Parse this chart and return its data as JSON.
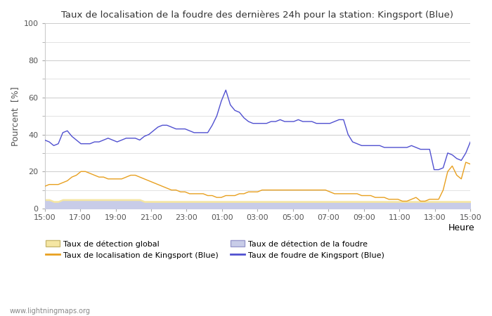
{
  "title": "Taux de localisation de la foudre des dernières 24h pour la station: Kingsport (Blue)",
  "xlabel": "Heure",
  "ylabel": "Pourcent  [%]",
  "watermark": "www.lightningmaps.org",
  "ylim": [
    0,
    100
  ],
  "yticks": [
    0,
    20,
    40,
    60,
    80,
    100
  ],
  "xtick_labels": [
    "15:00",
    "17:00",
    "19:00",
    "21:00",
    "23:00",
    "01:00",
    "03:00",
    "05:00",
    "07:00",
    "09:00",
    "11:00",
    "13:00",
    "15:00"
  ],
  "bg_color": "#ffffff",
  "plot_bg_color": "#ffffff",
  "grid_color": "#cccccc",
  "legend": [
    {
      "label": "Taux de détection global",
      "color": "#f5e6a3",
      "edge": "#d4c882",
      "type": "fill"
    },
    {
      "label": "Taux de localisation de Kingsport (Blue)",
      "color": "#e8a020",
      "type": "line"
    },
    {
      "label": "Taux de détection de la foudre",
      "color": "#c8cce8",
      "edge": "#aaaacc",
      "type": "fill"
    },
    {
      "label": "Taux de foudre de Kingsport (Blue)",
      "color": "#5050d0",
      "type": "line"
    }
  ],
  "blue_line": [
    37,
    36,
    34,
    35,
    41,
    42,
    39,
    37,
    35,
    35,
    35,
    36,
    36,
    37,
    38,
    37,
    36,
    37,
    38,
    38,
    38,
    37,
    39,
    40,
    42,
    44,
    45,
    45,
    44,
    43,
    43,
    43,
    42,
    41,
    41,
    41,
    41,
    45,
    50,
    58,
    64,
    56,
    53,
    52,
    49,
    47,
    46,
    46,
    46,
    46,
    47,
    47,
    48,
    47,
    47,
    47,
    48,
    47,
    47,
    47,
    46,
    46,
    46,
    46,
    47,
    48,
    48,
    40,
    36,
    35,
    34,
    34,
    34,
    34,
    34,
    33,
    33,
    33,
    33,
    33,
    33,
    34,
    33,
    32,
    32,
    32,
    21,
    21,
    22,
    30,
    29,
    27,
    26,
    30,
    36
  ],
  "orange_line": [
    12,
    13,
    13,
    13,
    14,
    15,
    17,
    18,
    20,
    20,
    19,
    18,
    17,
    17,
    16,
    16,
    16,
    16,
    17,
    18,
    18,
    17,
    16,
    15,
    14,
    13,
    12,
    11,
    10,
    10,
    9,
    9,
    8,
    8,
    8,
    8,
    7,
    7,
    6,
    6,
    7,
    7,
    7,
    8,
    8,
    9,
    9,
    9,
    10,
    10,
    10,
    10,
    10,
    10,
    10,
    10,
    10,
    10,
    10,
    10,
    10,
    10,
    10,
    9,
    8,
    8,
    8,
    8,
    8,
    8,
    7,
    7,
    7,
    6,
    6,
    6,
    5,
    5,
    5,
    4,
    4,
    5,
    6,
    4,
    4,
    5,
    5,
    5,
    10,
    20,
    23,
    18,
    16,
    25,
    24
  ],
  "yellow_fill": [
    5,
    5,
    4,
    4,
    5,
    5,
    5,
    5,
    5,
    5,
    5,
    5,
    5,
    5,
    5,
    5,
    5,
    5,
    5,
    5,
    5,
    5,
    4,
    4,
    4,
    4,
    4,
    4,
    4,
    4,
    4,
    4,
    4,
    4,
    4,
    4,
    4,
    4,
    4,
    4,
    4,
    4,
    4,
    4,
    4,
    4,
    4,
    4,
    4,
    4,
    4,
    4,
    4,
    4,
    4,
    4,
    4,
    4,
    4,
    4,
    4,
    4,
    4,
    4,
    4,
    4,
    4,
    4,
    4,
    4,
    4,
    4,
    4,
    4,
    4,
    4,
    4,
    4,
    4,
    4,
    4,
    4,
    4,
    4,
    4,
    4,
    4,
    4,
    4,
    4,
    4,
    4,
    4,
    4,
    4
  ],
  "blue_fill": [
    4,
    4,
    3,
    3,
    4,
    4,
    4,
    4,
    4,
    4,
    4,
    4,
    4,
    4,
    4,
    4,
    4,
    4,
    4,
    4,
    4,
    4,
    3,
    3,
    3,
    3,
    3,
    3,
    3,
    3,
    3,
    3,
    3,
    3,
    3,
    3,
    3,
    3,
    3,
    3,
    3,
    3,
    3,
    3,
    3,
    3,
    3,
    3,
    3,
    3,
    3,
    3,
    3,
    3,
    3,
    3,
    3,
    3,
    3,
    3,
    3,
    3,
    3,
    3,
    3,
    3,
    3,
    3,
    3,
    3,
    3,
    3,
    3,
    3,
    3,
    3,
    3,
    3,
    3,
    3,
    3,
    3,
    3,
    3,
    3,
    3,
    3,
    3,
    3,
    3,
    3,
    3,
    3,
    3,
    3
  ]
}
